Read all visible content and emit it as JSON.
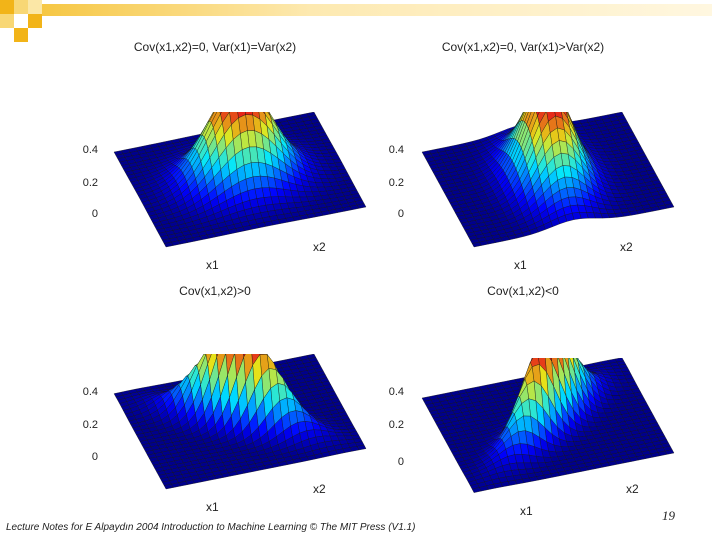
{
  "decoration_color": "#f2b418",
  "chart_data": [
    {
      "type": "surface",
      "title": "Cov(x1,x2)=0, Var(x1)=Var(x2)",
      "xlabel": "x1",
      "ylabel": "x2",
      "zticks": [
        "0.4",
        "0.2",
        "0"
      ],
      "zlim": [
        0,
        0.4
      ],
      "peak": 0.4,
      "var1": 1.0,
      "var2": 1.0,
      "cov": 0.0,
      "colormap": "jet"
    },
    {
      "type": "surface",
      "title": "Cov(x1,x2)=0, Var(x1)>Var(x2)",
      "xlabel": "x1",
      "ylabel": "x2",
      "zticks": [
        "0.4",
        "0.2",
        "0"
      ],
      "zlim": [
        0,
        0.4
      ],
      "peak": 0.4,
      "var1": 2.0,
      "var2": 0.5,
      "cov": 0.0,
      "colormap": "jet"
    },
    {
      "type": "surface",
      "title": "Cov(x1,x2)>0",
      "xlabel": "x1",
      "ylabel": "x2",
      "zticks": [
        "0.4",
        "0.2",
        "0"
      ],
      "zlim": [
        0,
        0.4
      ],
      "peak": 0.4,
      "var1": 1.0,
      "var2": 1.0,
      "cov": 0.8,
      "colormap": "jet"
    },
    {
      "type": "surface",
      "title": "Cov(x1,x2)<0",
      "xlabel": "x1",
      "ylabel": "x2",
      "zticks": [
        "0.4",
        "0.2",
        "0"
      ],
      "zlim": [
        0,
        0.4
      ],
      "peak": 0.4,
      "var1": 1.0,
      "var2": 1.0,
      "cov": -0.8,
      "colormap": "jet"
    }
  ],
  "footer": {
    "text": "Lecture Notes for E Alpaydın 2004 Introduction to Machine Learning © The MIT Press (V1.1)",
    "page": "19"
  }
}
